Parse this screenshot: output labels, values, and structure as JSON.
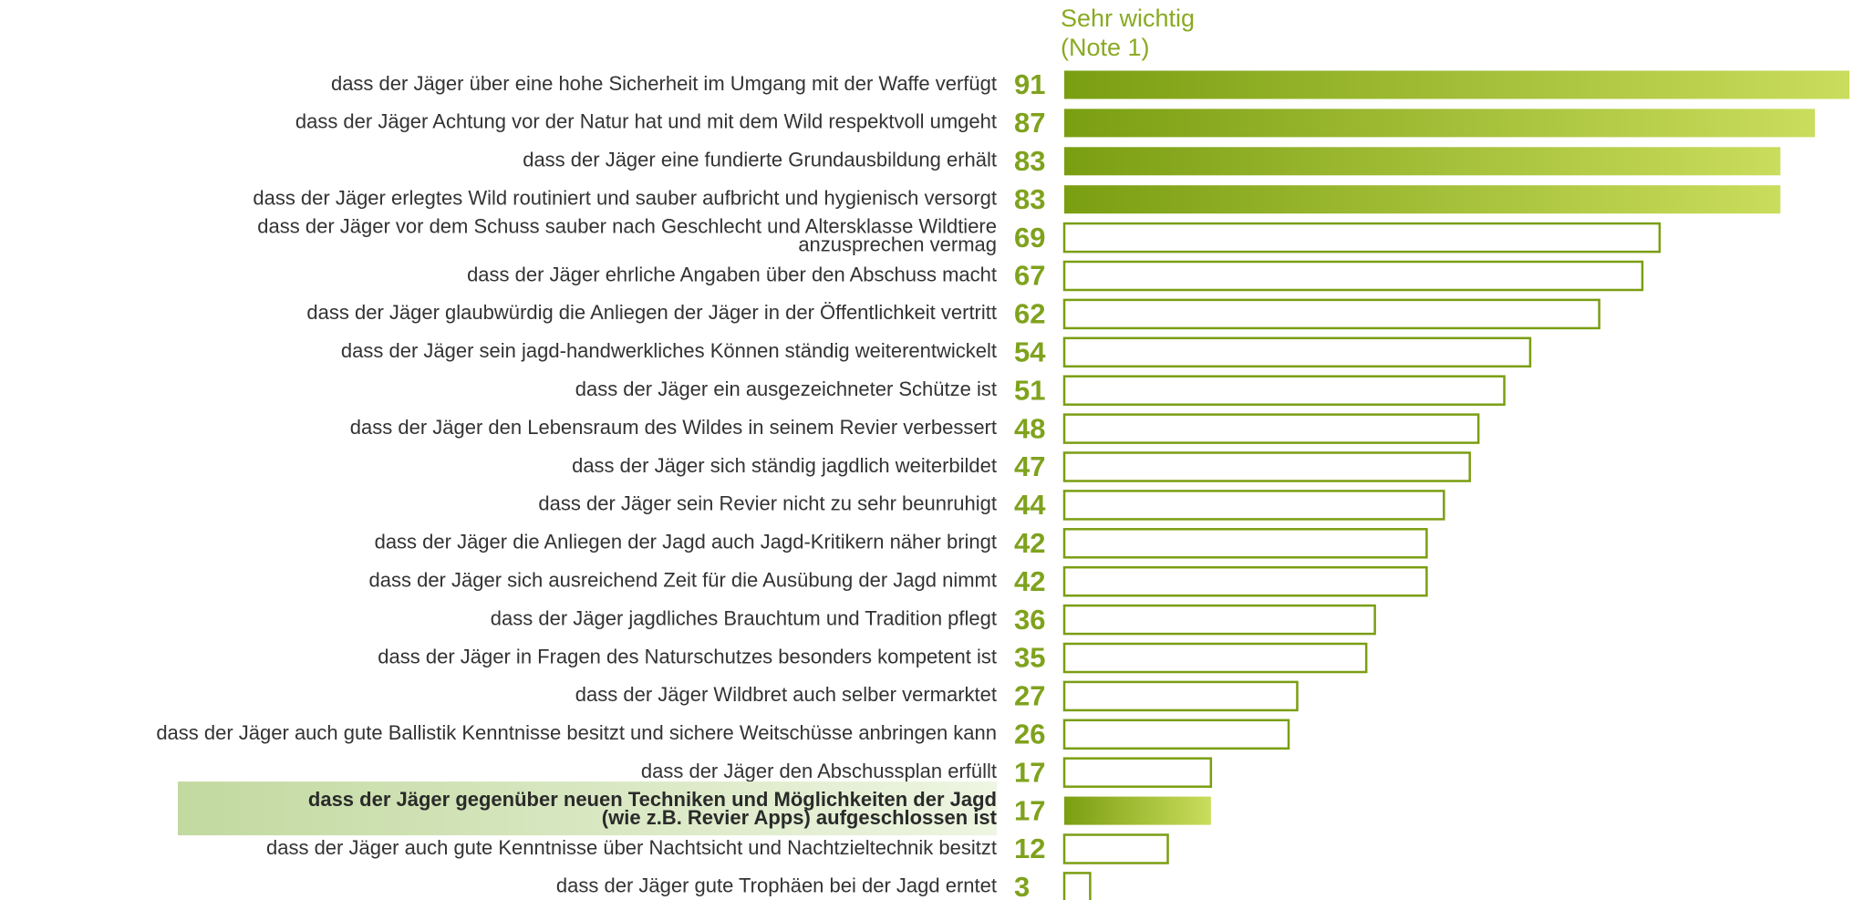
{
  "chart_data": {
    "type": "bar",
    "orientation": "horizontal",
    "header": [
      "Sehr wichtig",
      "(Note 1)"
    ],
    "categories": [
      "dass der Jäger über eine hohe Sicherheit im Umgang mit der Waffe verfügt",
      "dass der Jäger Achtung vor der Natur hat und mit dem Wild respektvoll umgeht",
      "dass der Jäger eine fundierte Grundausbildung erhält",
      "dass der Jäger erlegtes Wild routiniert und sauber aufbricht und hygienisch versorgt",
      [
        "dass der Jäger vor dem Schuss sauber nach Geschlecht und Altersklasse Wildtiere",
        "anzusprechen vermag"
      ],
      "dass der Jäger ehrliche Angaben über den Abschuss macht",
      "dass der Jäger glaubwürdig die Anliegen der Jäger in der Öffentlichkeit vertritt",
      "dass der Jäger sein jagd-handwerkliches Können ständig weiterentwickelt",
      "dass der Jäger ein ausgezeichneter Schütze ist",
      "dass der Jäger den Lebensraum des Wildes in seinem Revier verbessert",
      "dass der Jäger sich ständig jagdlich weiterbildet",
      "dass der Jäger sein Revier nicht zu sehr beunruhigt",
      "dass der Jäger die Anliegen der Jagd auch Jagd-Kritikern näher bringt",
      "dass der Jäger sich ausreichend Zeit für die Ausübung der Jagd nimmt",
      "dass der Jäger jagdliches Brauchtum und Tradition pflegt",
      "dass der Jäger in Fragen des Naturschutzes besonders kompetent ist",
      "dass der Jäger Wildbret auch selber vermarktet",
      "dass der Jäger auch gute Ballistik Kenntnisse besitzt und sichere Weitschüsse anbringen kann",
      "dass der Jäger den Abschussplan erfüllt",
      [
        "dass der Jäger gegenüber neuen Techniken und Möglichkeiten der Jagd",
        "(wie z.B.  Revier Apps) aufgeschlossen ist"
      ],
      "dass der Jäger auch gute Kenntnisse über Nachtsicht und Nachtzieltechnik besitzt",
      "dass der Jäger gute Trophäen bei der Jagd erntet"
    ],
    "values": [
      91,
      87,
      83,
      83,
      69,
      67,
      62,
      54,
      51,
      48,
      47,
      44,
      42,
      42,
      36,
      35,
      27,
      26,
      17,
      17,
      12,
      3
    ],
    "xlim": [
      0,
      91
    ],
    "color": "#7a9e12",
    "color_light": "#cadd5c",
    "filled_indices": [
      0,
      1,
      2,
      3,
      19
    ],
    "highlight_index": 19
  }
}
